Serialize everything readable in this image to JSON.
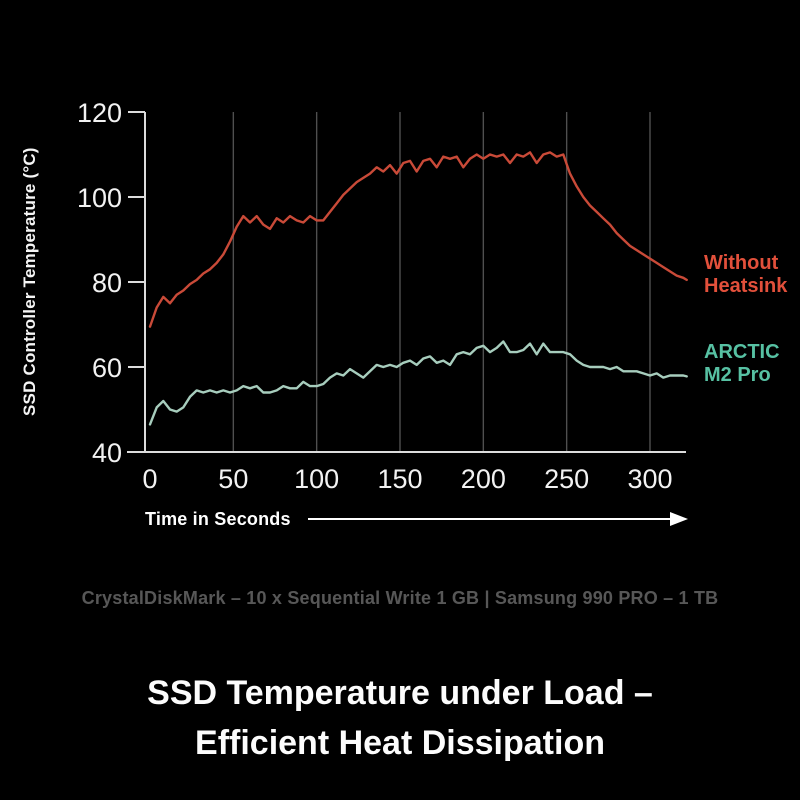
{
  "page": {
    "footnote": "CrystalDiskMark – 10 x Sequential Write 1 GB | Samsung 990 PRO – 1 TB",
    "title_line1": "SSD Temperature under Load –",
    "title_line2": "Efficient Heat Dissipation",
    "background": "#000000"
  },
  "legend": {
    "series1": {
      "line1": "Without",
      "line2": "Heatsink",
      "color": "#e2503b"
    },
    "series2": {
      "line1": "ARCTIC",
      "line2": "M2 Pro",
      "color": "#57c1a3"
    }
  },
  "chart_data": {
    "type": "line",
    "title": "",
    "xlabel": "Time in Seconds",
    "ylabel": "SSD Controller Temperature (°C)",
    "xlim": [
      0,
      322
    ],
    "ylim": [
      40,
      120
    ],
    "xticks": [
      0,
      50,
      100,
      150,
      200,
      250,
      300
    ],
    "yticks": [
      40,
      60,
      80,
      100,
      120
    ],
    "grid": "vertical-only",
    "grid_color": "#4f4f4f",
    "axis_color": "#dcdcdc",
    "tick_label_color": "#f2f2f2",
    "legend_position": "right",
    "series": [
      {
        "name": "Without Heatsink",
        "color": "#c94a38",
        "x": [
          0,
          4,
          8,
          12,
          16,
          20,
          24,
          28,
          32,
          36,
          40,
          44,
          48,
          52,
          56,
          60,
          64,
          68,
          72,
          76,
          80,
          84,
          88,
          92,
          96,
          100,
          104,
          108,
          112,
          116,
          120,
          124,
          128,
          132,
          136,
          140,
          144,
          148,
          152,
          156,
          160,
          164,
          168,
          172,
          176,
          180,
          184,
          188,
          192,
          196,
          200,
          204,
          208,
          212,
          216,
          220,
          224,
          228,
          232,
          236,
          240,
          244,
          248,
          252,
          256,
          260,
          264,
          268,
          272,
          276,
          280,
          284,
          288,
          292,
          296,
          300,
          304,
          308,
          312,
          316,
          320,
          322
        ],
        "y": [
          69.5,
          74,
          76.5,
          75,
          77,
          78,
          79.5,
          80.5,
          82,
          83,
          84.5,
          86.5,
          89.5,
          93,
          95.5,
          94,
          95.5,
          93.5,
          92.5,
          95,
          94,
          95.5,
          94.5,
          94,
          95.5,
          94.5,
          94.5,
          96.5,
          98.5,
          100.5,
          102,
          103.5,
          104.5,
          105.5,
          107,
          106,
          107.5,
          105.5,
          108,
          108.5,
          106,
          108.5,
          109,
          107,
          109.5,
          109,
          109.5,
          107,
          109,
          110,
          109,
          110,
          109.5,
          110,
          108,
          110,
          109.5,
          110.5,
          108,
          110,
          110.5,
          109.5,
          110,
          105.5,
          102.5,
          100,
          98,
          96.5,
          95,
          93.5,
          91.5,
          90,
          88.5,
          87.5,
          86.5,
          85.5,
          84.5,
          83.5,
          82.5,
          81.5,
          81,
          80.5
        ]
      },
      {
        "name": "ARCTIC M2 Pro",
        "color": "#a7cdbd",
        "x": [
          0,
          4,
          8,
          12,
          16,
          20,
          24,
          28,
          32,
          36,
          40,
          44,
          48,
          52,
          56,
          60,
          64,
          68,
          72,
          76,
          80,
          84,
          88,
          92,
          96,
          100,
          104,
          108,
          112,
          116,
          120,
          124,
          128,
          132,
          136,
          140,
          144,
          148,
          152,
          156,
          160,
          164,
          168,
          172,
          176,
          180,
          184,
          188,
          192,
          196,
          200,
          204,
          208,
          212,
          216,
          220,
          224,
          228,
          232,
          236,
          240,
          244,
          248,
          252,
          256,
          260,
          264,
          268,
          272,
          276,
          280,
          284,
          288,
          292,
          296,
          300,
          304,
          308,
          312,
          316,
          320,
          322
        ],
        "y": [
          46.5,
          50.5,
          52,
          50,
          49.5,
          50.5,
          53,
          54.5,
          54,
          54.5,
          54,
          54.5,
          54,
          54.5,
          55.5,
          55,
          55.5,
          54,
          54,
          54.5,
          55.5,
          55,
          55,
          56.5,
          55.5,
          55.5,
          56,
          57.5,
          58.5,
          58,
          59.5,
          58.5,
          57.5,
          59,
          60.5,
          60,
          60.5,
          60,
          61,
          61.5,
          60.5,
          62,
          62.5,
          61,
          61.5,
          60.5,
          63,
          63.5,
          63,
          64.5,
          65,
          63.5,
          64.5,
          66,
          63.5,
          63.5,
          64,
          65.5,
          63,
          65.5,
          63.5,
          63.5,
          63.5,
          63,
          61.5,
          60.5,
          60,
          60,
          60,
          59.5,
          60,
          59,
          59,
          59,
          58.5,
          58,
          58.5,
          57.5,
          58,
          58,
          58,
          57.8
        ]
      }
    ]
  }
}
